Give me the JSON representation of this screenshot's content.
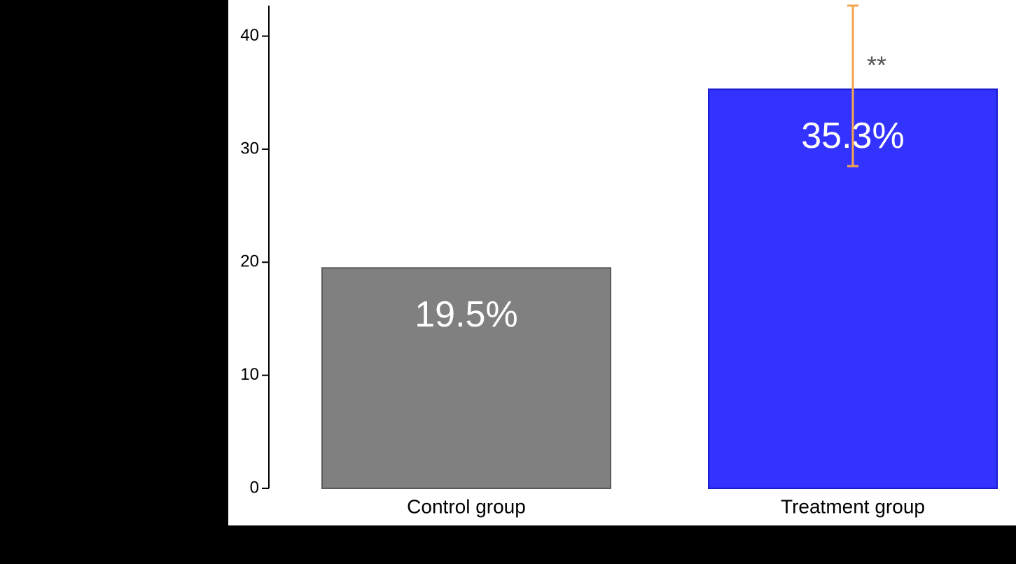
{
  "chart_data": {
    "type": "bar",
    "categories": [
      "Control group",
      "Treatment group"
    ],
    "values": [
      19.5,
      35.3
    ],
    "value_labels": [
      "19.5%",
      "35.3%"
    ],
    "colors": [
      "#808080",
      "#3333ff"
    ],
    "edge_colors": [
      "#5a5a5a",
      "#1a1acc"
    ],
    "error_low": [
      null,
      28.5
    ],
    "error_high": [
      null,
      42.7
    ],
    "error_color": "#f5a54f",
    "annotations": [
      {
        "text": "**",
        "category": 1
      }
    ],
    "ylim": [
      0,
      42.7
    ],
    "yticks": [
      0,
      10,
      20,
      30,
      40
    ]
  }
}
